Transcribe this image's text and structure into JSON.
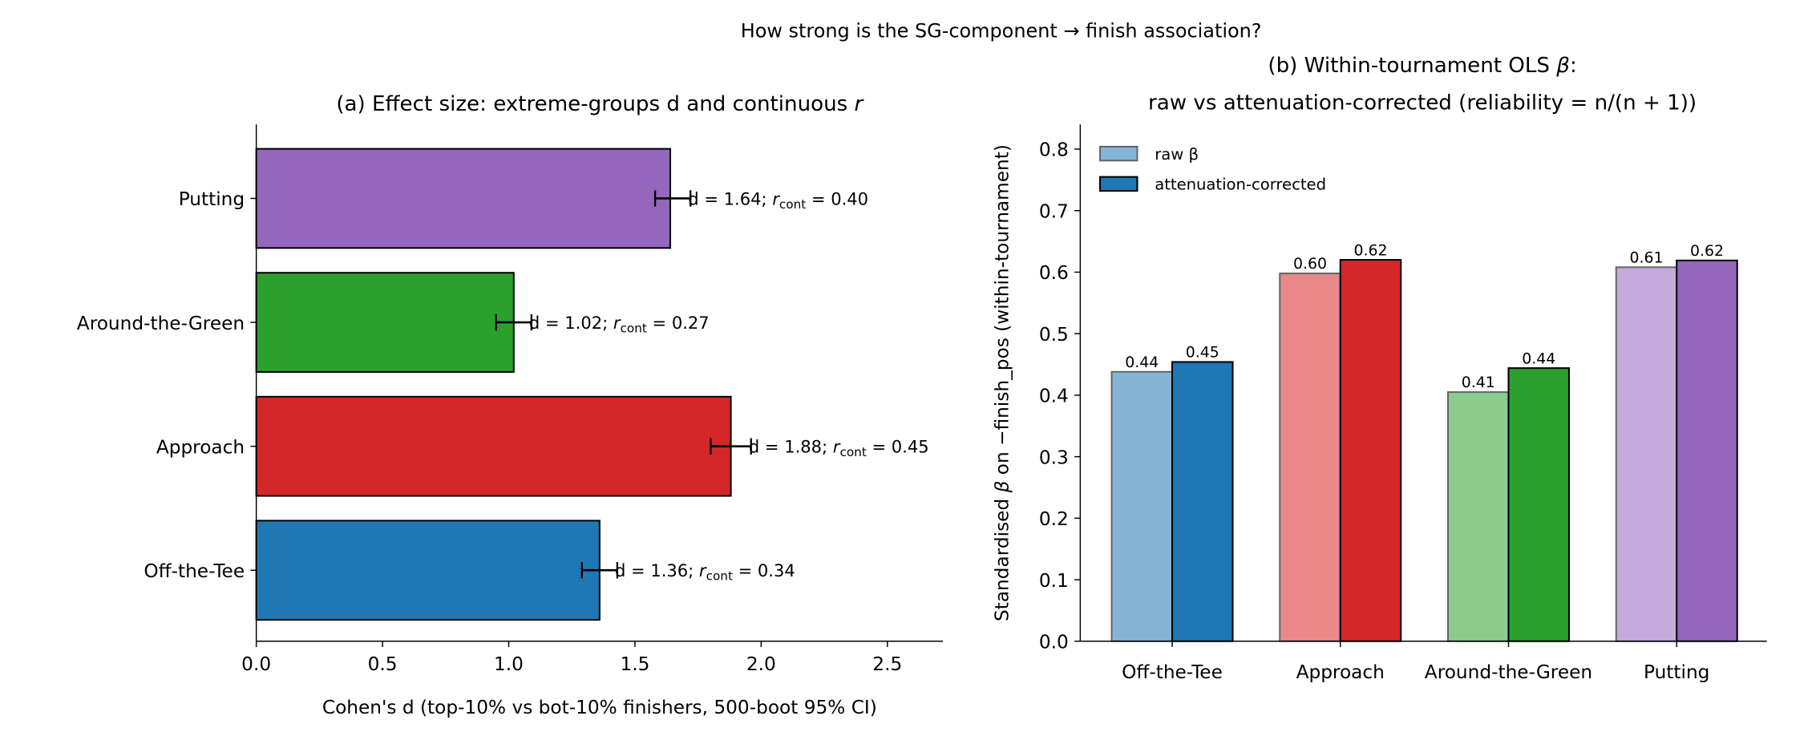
{
  "suptitle": "How strong is the SG-component → finish association?",
  "colors": {
    "Off-the-Tee": "#1f77b4",
    "Approach": "#d62728",
    "Around-the-Green": "#2ca02c",
    "Putting": "#9467bd"
  },
  "chart_data": [
    {
      "type": "bar",
      "orientation": "horizontal",
      "title": "(a) Effect size: extreme-groups d and continuous r",
      "xlabel": "Cohen's d  (top-10% vs bot-10% finishers, 500-boot 95% CI)",
      "ylabel": "",
      "xlim": [
        0,
        2.72
      ],
      "xticks": [
        "0.0",
        "0.5",
        "1.0",
        "1.5",
        "2.0",
        "2.5"
      ],
      "categories": [
        "Off-the-Tee",
        "Approach",
        "Around-the-Green",
        "Putting"
      ],
      "values": [
        1.36,
        1.88,
        1.02,
        1.64
      ],
      "ci_low": [
        1.29,
        1.8,
        0.95,
        1.58
      ],
      "ci_high": [
        1.43,
        1.96,
        1.09,
        1.72
      ],
      "r_cont": [
        0.34,
        0.45,
        0.27,
        0.4
      ],
      "annotations": [
        "d = 1.36; r_cont = 0.34",
        "d = 1.88; r_cont = 0.45",
        "d = 1.02; r_cont = 0.27",
        "d = 1.64; r_cont = 0.40"
      ],
      "grid": false
    },
    {
      "type": "bar",
      "title_line1": "(b) Within-tournament OLS β:",
      "title_line2": "raw vs attenuation-corrected (reliability = n/(n + 1))",
      "xlabel": "",
      "ylabel": "Standardised β on −finish_pos (within-tournament)",
      "ylim": [
        0,
        0.84
      ],
      "yticks": [
        "0.0",
        "0.1",
        "0.2",
        "0.3",
        "0.4",
        "0.5",
        "0.6",
        "0.7",
        "0.8"
      ],
      "categories": [
        "Off-the-Tee",
        "Approach",
        "Around-the-Green",
        "Putting"
      ],
      "series": [
        {
          "name": "raw β",
          "values": [
            0.438,
            0.598,
            0.405,
            0.608
          ],
          "labels": [
            "0.44",
            "0.60",
            "0.41",
            "0.61"
          ]
        },
        {
          "name": "attenuation-corrected",
          "values": [
            0.454,
            0.62,
            0.444,
            0.619
          ],
          "labels": [
            "0.45",
            "0.62",
            "0.44",
            "0.62"
          ]
        }
      ],
      "legend": "top-left",
      "grid": false
    }
  ]
}
